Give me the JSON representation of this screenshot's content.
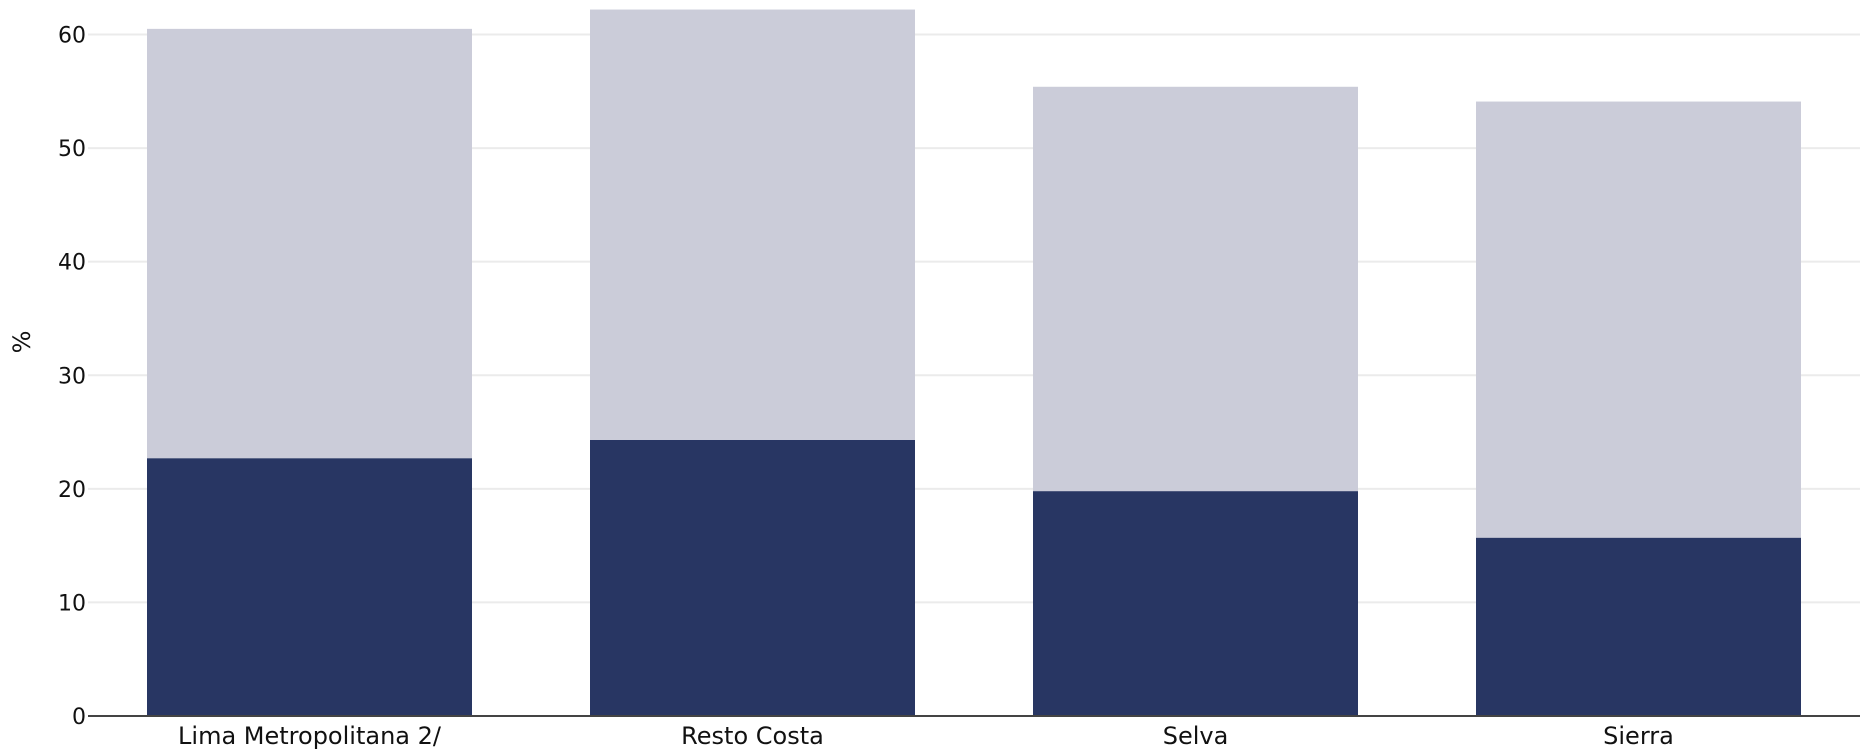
{
  "chart_data": {
    "type": "bar",
    "stacked": true,
    "categories": [
      "Lima Metropolitana 2/",
      "Resto Costa",
      "Selva",
      "Sierra"
    ],
    "series": [
      {
        "values": [
          22.7,
          24.3,
          19.8,
          15.7
        ],
        "color": "#283663"
      },
      {
        "values": [
          37.8,
          37.9,
          35.6,
          38.4
        ],
        "color": "#cbccd9"
      }
    ],
    "totals": [
      60.5,
      62.2,
      55.4,
      54.1
    ],
    "title": "",
    "xlabel": "",
    "ylabel": "%",
    "ylim": [
      0,
      62.6
    ],
    "yticks": [
      0,
      10,
      20,
      30,
      40,
      50,
      60
    ],
    "grid": true,
    "legend": "none"
  }
}
